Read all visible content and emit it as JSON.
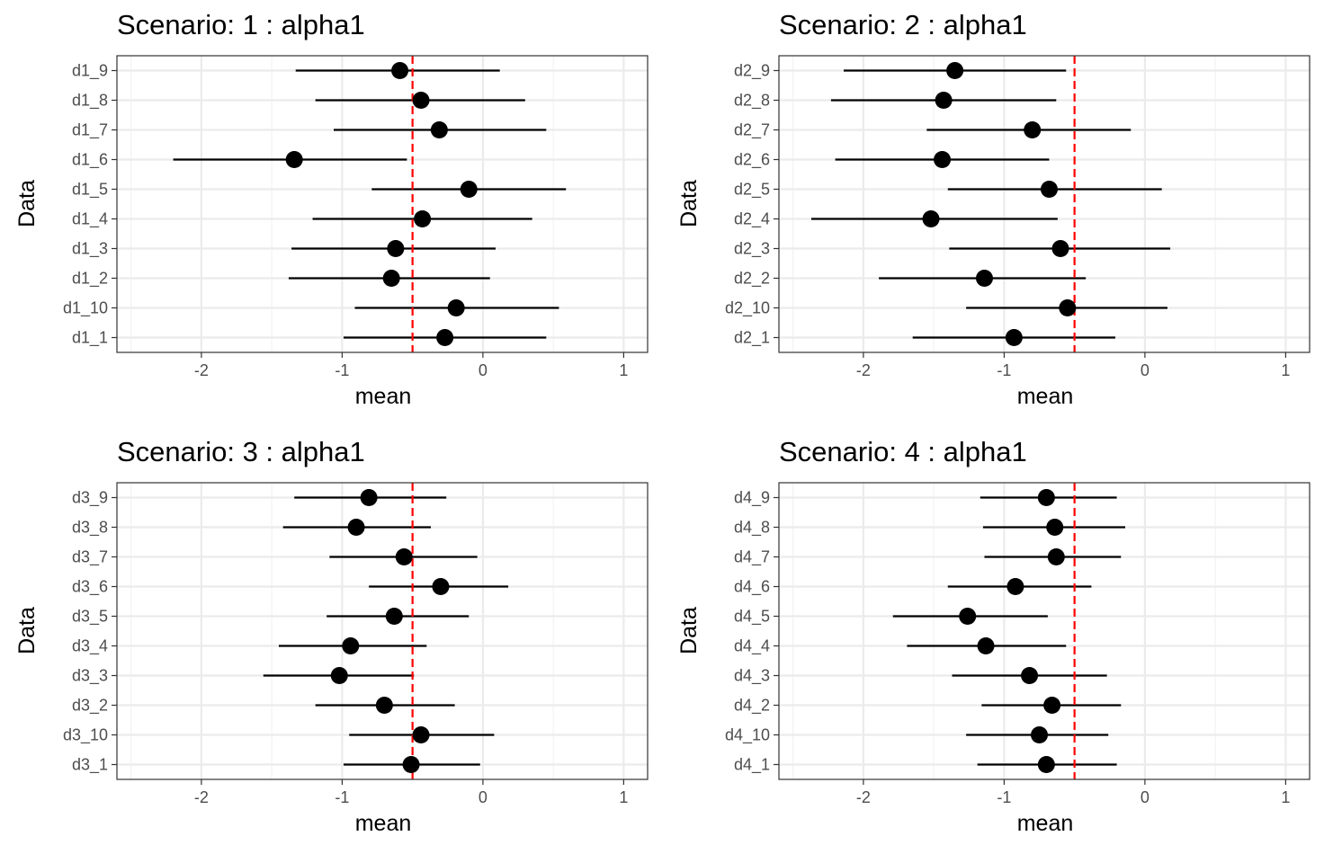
{
  "chart_data": [
    {
      "type": "scatter",
      "title": "Scenario: 1 : alpha1",
      "xlabel": "mean",
      "ylabel": "Data",
      "xlim": [
        -2.6,
        1.17
      ],
      "xticks": [
        "-2",
        "-1",
        "0",
        "1"
      ],
      "reference_line": -0.5,
      "categories": [
        "d1_1",
        "d1_10",
        "d1_2",
        "d1_3",
        "d1_4",
        "d1_5",
        "d1_6",
        "d1_7",
        "d1_8",
        "d1_9"
      ],
      "mean": [
        -0.27,
        -0.19,
        -0.65,
        -0.62,
        -0.43,
        -0.1,
        -1.34,
        -0.31,
        -0.44,
        -0.59
      ],
      "lower": [
        -0.99,
        -0.91,
        -1.38,
        -1.36,
        -1.21,
        -0.79,
        -2.2,
        -1.06,
        -1.19,
        -1.33
      ],
      "upper": [
        0.45,
        0.54,
        0.05,
        0.09,
        0.35,
        0.59,
        -0.54,
        0.45,
        0.3,
        0.12
      ]
    },
    {
      "type": "scatter",
      "title": "Scenario: 2 : alpha1",
      "xlabel": "mean",
      "ylabel": "Data",
      "xlim": [
        -2.6,
        1.17
      ],
      "xticks": [
        "-2",
        "-1",
        "0",
        "1"
      ],
      "reference_line": -0.5,
      "categories": [
        "d2_1",
        "d2_10",
        "d2_2",
        "d2_3",
        "d2_4",
        "d2_5",
        "d2_6",
        "d2_7",
        "d2_8",
        "d2_9"
      ],
      "mean": [
        -0.93,
        -0.55,
        -1.14,
        -0.6,
        -1.52,
        -0.68,
        -1.44,
        -0.8,
        -1.43,
        -1.35
      ],
      "lower": [
        -1.65,
        -1.27,
        -1.89,
        -1.39,
        -2.37,
        -1.4,
        -2.2,
        -1.55,
        -2.23,
        -2.14
      ],
      "upper": [
        -0.21,
        0.16,
        -0.42,
        0.18,
        -0.62,
        0.12,
        -0.68,
        -0.1,
        -0.63,
        -0.56
      ]
    },
    {
      "type": "scatter",
      "title": "Scenario: 3 : alpha1",
      "xlabel": "mean",
      "ylabel": "Data",
      "xlim": [
        -2.6,
        1.17
      ],
      "xticks": [
        "-2",
        "-1",
        "0",
        "1"
      ],
      "reference_line": -0.5,
      "categories": [
        "d3_1",
        "d3_10",
        "d3_2",
        "d3_3",
        "d3_4",
        "d3_5",
        "d3_6",
        "d3_7",
        "d3_8",
        "d3_9"
      ],
      "mean": [
        -0.51,
        -0.44,
        -0.7,
        -1.02,
        -0.94,
        -0.63,
        -0.3,
        -0.56,
        -0.9,
        -0.81
      ],
      "lower": [
        -0.99,
        -0.95,
        -1.19,
        -1.56,
        -1.45,
        -1.11,
        -0.81,
        -1.09,
        -1.42,
        -1.34
      ],
      "upper": [
        -0.02,
        0.08,
        -0.2,
        -0.49,
        -0.4,
        -0.1,
        0.18,
        -0.04,
        -0.37,
        -0.26
      ]
    },
    {
      "type": "scatter",
      "title": "Scenario: 4 : alpha1",
      "xlabel": "mean",
      "ylabel": "Data",
      "xlim": [
        -2.6,
        1.17
      ],
      "xticks": [
        "-2",
        "-1",
        "0",
        "1"
      ],
      "reference_line": -0.5,
      "categories": [
        "d4_1",
        "d4_10",
        "d4_2",
        "d4_3",
        "d4_4",
        "d4_5",
        "d4_6",
        "d4_7",
        "d4_8",
        "d4_9"
      ],
      "mean": [
        -0.7,
        -0.75,
        -0.66,
        -0.82,
        -1.13,
        -1.26,
        -0.92,
        -0.63,
        -0.64,
        -0.7
      ],
      "lower": [
        -1.19,
        -1.27,
        -1.16,
        -1.37,
        -1.69,
        -1.79,
        -1.4,
        -1.14,
        -1.15,
        -1.17
      ],
      "upper": [
        -0.2,
        -0.26,
        -0.17,
        -0.27,
        -0.56,
        -0.69,
        -0.38,
        -0.17,
        -0.14,
        -0.2
      ]
    }
  ]
}
